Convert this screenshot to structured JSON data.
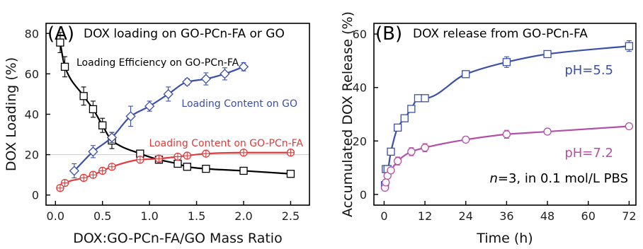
{
  "chart_data": [
    {
      "type": "line",
      "panel_label": "(A)",
      "title": "DOX loading on GO-PCn-FA or GO",
      "xlabel": "DOX:GO-PCn-FA/GO Mass Ratio",
      "ylabel": "DOX Loading (%)",
      "xlim": [
        -0.1,
        2.7
      ],
      "ylim": [
        -5,
        85
      ],
      "xticks": [
        "0.0",
        "0.5",
        "1.0",
        "1.5",
        "2.0",
        "2.5"
      ],
      "yticks": [
        "0",
        "20",
        "40",
        "60",
        "80"
      ],
      "reference_line_y": 20,
      "series": [
        {
          "name": "Loading Efficiency on GO-PCn-FA",
          "color": "#000000",
          "marker": "square",
          "x": [
            0.05,
            0.1,
            0.3,
            0.4,
            0.5,
            0.6,
            0.9,
            1.1,
            1.3,
            1.4,
            1.6,
            2.0,
            2.5
          ],
          "y": [
            75.5,
            63.5,
            49,
            42.5,
            34.5,
            27,
            20.5,
            17.5,
            15.5,
            14,
            13,
            12,
            10.5
          ],
          "err": [
            5,
            5,
            4.5,
            4,
            3.5,
            4,
            1.5,
            1.5,
            1,
            1.5,
            1,
            1,
            1
          ]
        },
        {
          "name": "Loading Content on GO",
          "color": "#3a4fa8",
          "marker": "diamond",
          "x": [
            0.2,
            0.4,
            0.6,
            0.8,
            1.0,
            1.2,
            1.4,
            1.6,
            1.8,
            2.0
          ],
          "y": [
            12,
            21.5,
            28.5,
            39,
            44,
            50,
            56,
            57.5,
            60,
            63.5
          ],
          "err": [
            3.5,
            3,
            2.5,
            5,
            2.5,
            3.5,
            1.5,
            3,
            3,
            2
          ]
        },
        {
          "name": "Loading Content on GO-PCn-FA",
          "color": "#e23a3a",
          "marker": "circle-plus",
          "x": [
            0.05,
            0.1,
            0.3,
            0.4,
            0.5,
            0.6,
            0.9,
            1.1,
            1.3,
            1.4,
            1.6,
            2.0,
            2.5
          ],
          "y": [
            3.5,
            6,
            8.5,
            10,
            12,
            14,
            17.5,
            18,
            19,
            19.5,
            20.5,
            21,
            21
          ],
          "err": [
            0.8,
            0.8,
            0.8,
            0.8,
            0.8,
            0.8,
            0.8,
            0.8,
            0.8,
            0.8,
            0.8,
            0.8,
            0.8
          ]
        }
      ]
    },
    {
      "type": "line",
      "panel_label": "(B)",
      "title": "DOX release from GO-PCn-FA",
      "xlabel": "Time (h)",
      "ylabel": "Accumulated DOX Release (%)",
      "xlim": [
        -3,
        74
      ],
      "ylim": [
        -4,
        64
      ],
      "xticks": [
        "0",
        "12",
        "24",
        "36",
        "48",
        "60",
        "72"
      ],
      "yticks": [
        "0",
        "20",
        "40",
        "60"
      ],
      "annotation": "n=3, in 0.1 mol/L PBS",
      "series": [
        {
          "name": "pH=5.5",
          "color": "#3a4fa8",
          "marker": "square",
          "x": [
            0.25,
            0.5,
            1,
            2,
            4,
            6,
            8,
            10,
            12,
            24,
            36,
            48,
            72
          ],
          "y": [
            3.5,
            9.5,
            9.5,
            16,
            25,
            28.5,
            32,
            36,
            36,
            45,
            49.5,
            52.5,
            55.5
          ],
          "err": [
            1,
            1,
            1,
            1,
            1,
            1,
            1,
            1,
            1,
            1,
            2,
            1,
            2
          ]
        },
        {
          "name": "pH=7.2",
          "color": "#b44fa6",
          "marker": "circle",
          "x": [
            0.25,
            0.5,
            1,
            2,
            4,
            8,
            12,
            24,
            36,
            48,
            72
          ],
          "y": [
            2.5,
            4.5,
            7,
            9,
            12.5,
            16,
            17.5,
            20.5,
            22.5,
            23.5,
            25.5
          ],
          "err": [
            1,
            1,
            1,
            1,
            1.5,
            1.5,
            1.5,
            1,
            1.5,
            1,
            1
          ]
        }
      ]
    }
  ]
}
